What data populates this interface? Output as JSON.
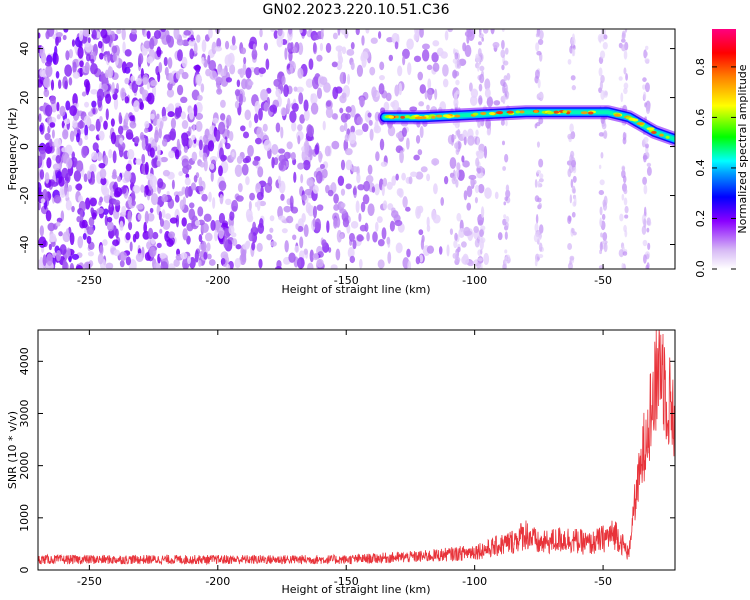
{
  "title": "GN02.2023.220.10.51.C36",
  "chart_data": [
    {
      "type": "heatmap",
      "xlabel": "Height of straight line (km)",
      "ylabel": "Frequency (Hz)",
      "xlim": [
        -270,
        -22
      ],
      "ylim": [
        -50,
        48
      ],
      "x_ticks": [
        -250,
        -200,
        -150,
        -100,
        -50
      ],
      "y_ticks": [
        -40,
        -20,
        0,
        20,
        40
      ],
      "colorbar": {
        "label": "Normalized spectral amplitude",
        "range": [
          0.0,
          0.95
        ],
        "ticks": [
          0.0,
          0.2,
          0.4,
          0.6,
          0.8
        ],
        "tick_labels": [
          "0.0",
          "0.2",
          "0.4",
          "0.6",
          "0.8"
        ]
      },
      "signal_trace": {
        "x": [
          -135,
          -120,
          -100,
          -80,
          -60,
          -48,
          -40,
          -30,
          -22
        ],
        "y": [
          12,
          12,
          13,
          14,
          14,
          14,
          12,
          6,
          3
        ]
      },
      "noise_x_range": [
        -270,
        -90
      ]
    },
    {
      "type": "line",
      "xlabel": "Height of straight line (km)",
      "ylabel": "SNR (10 * v/v)",
      "xlim": [
        -270,
        -22
      ],
      "ylim": [
        0,
        4600
      ],
      "x_ticks": [
        -250,
        -200,
        -150,
        -100,
        -50
      ],
      "y_ticks": [
        0,
        1000,
        2000,
        3000,
        4000
      ],
      "color": "#e8333a",
      "envelope": {
        "x": [
          -270,
          -150,
          -120,
          -105,
          -95,
          -85,
          -80,
          -75,
          -65,
          -55,
          -45,
          -40,
          -38,
          -35,
          -33,
          -30,
          -28,
          -25,
          -22
        ],
        "y": [
          200,
          200,
          260,
          320,
          400,
          550,
          700,
          500,
          600,
          500,
          700,
          300,
          1300,
          2200,
          3000,
          3600,
          4500,
          3600,
          3200
        ]
      }
    }
  ]
}
